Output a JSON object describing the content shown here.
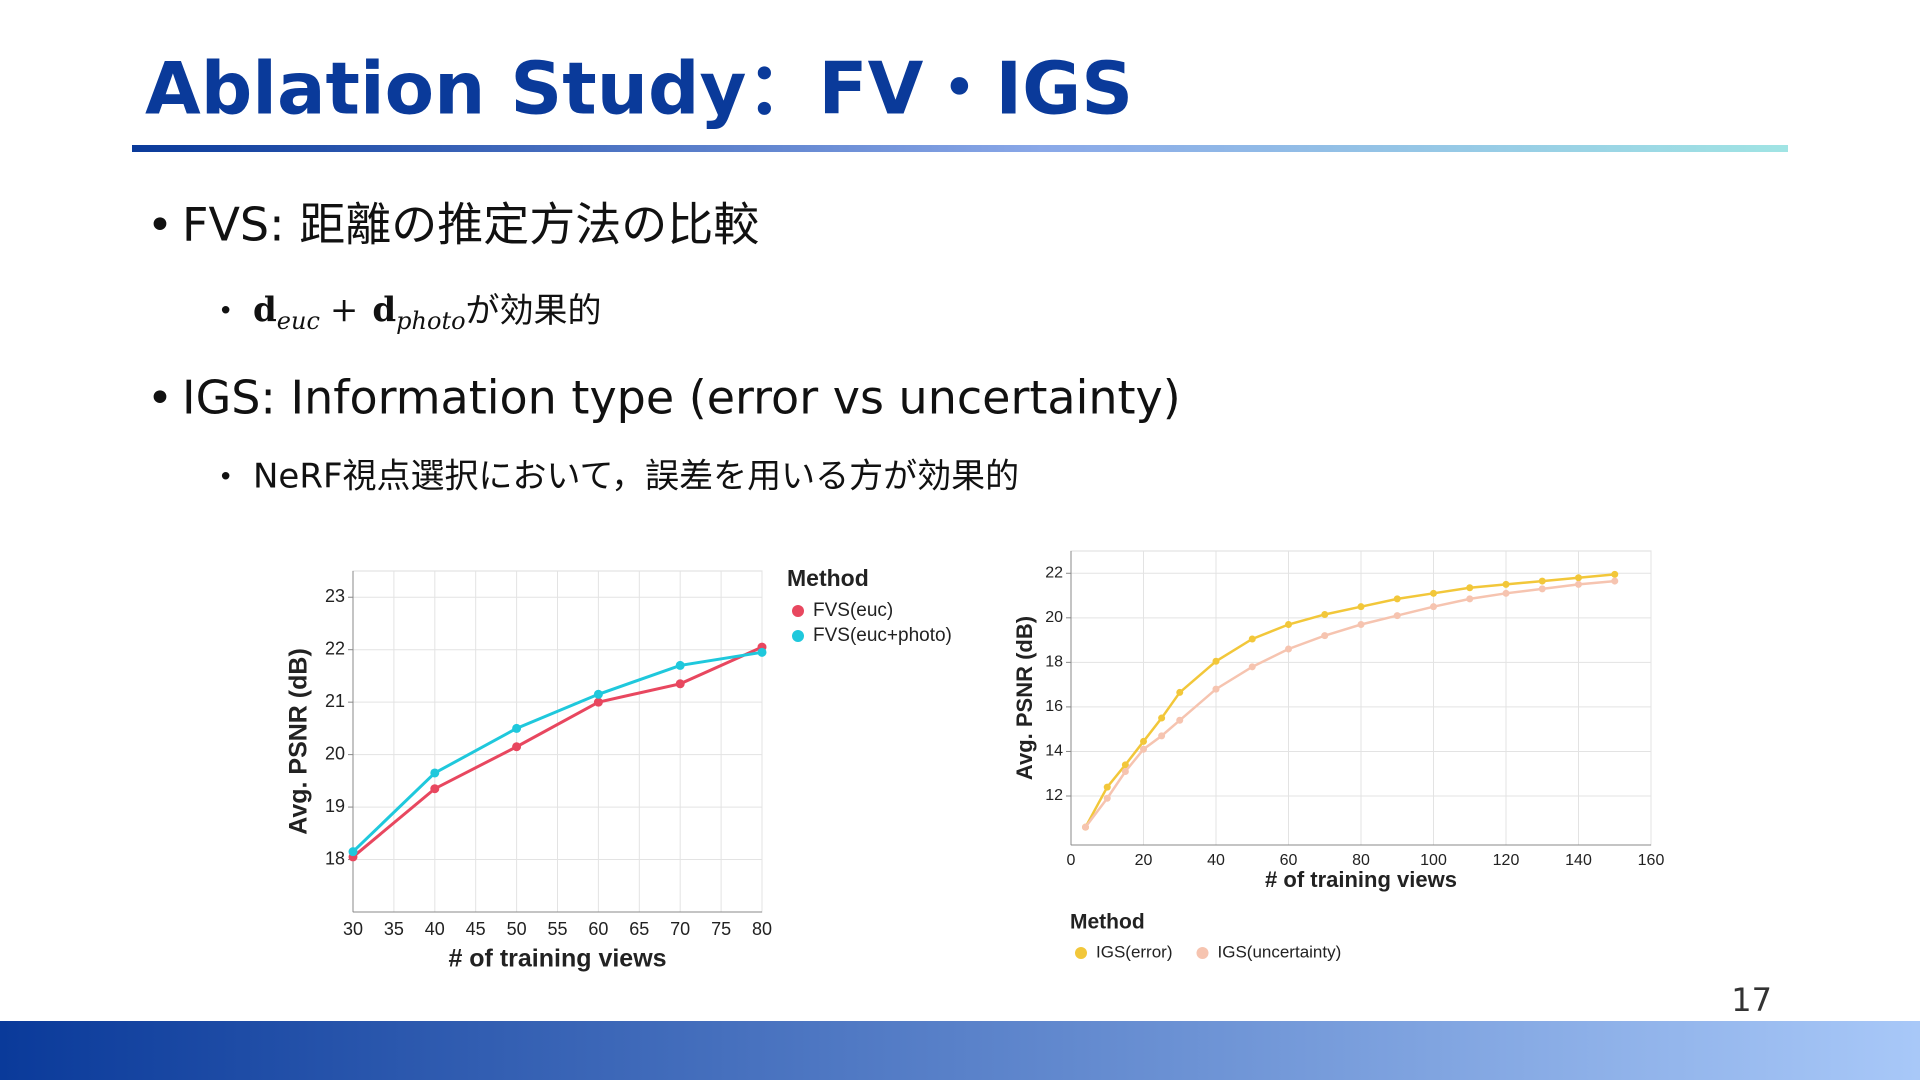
{
  "title": "Ablation Study：FV・IGS",
  "bullets": [
    {
      "text": "FVS: 距離の推定方法の比較",
      "sub": [
        "d",
        "euc",
        "+",
        "d",
        "photo",
        "が効果的"
      ]
    },
    {
      "text": "IGS: Information type (error vs uncertainty)",
      "sub": [
        "NeRF視点選択において，誤差を用いる方が効果的"
      ]
    }
  ],
  "page_number": "17",
  "chart_data": [
    {
      "type": "line",
      "xlabel": "# of training views",
      "ylabel": "Avg. PSNR (dB)",
      "x": [
        30,
        40,
        50,
        60,
        70,
        80
      ],
      "xlim": [
        30,
        80
      ],
      "xticks": [
        30,
        35,
        40,
        45,
        50,
        55,
        60,
        65,
        70,
        75,
        80
      ],
      "ylim": [
        17,
        23.5
      ],
      "yticks": [
        18,
        19,
        20,
        21,
        22,
        23
      ],
      "grid": true,
      "legend": "right",
      "legend_title": "Method",
      "series": [
        {
          "name": "FVS(euc)",
          "color": "#e8475f",
          "values": [
            18.05,
            19.35,
            20.15,
            21.0,
            21.35,
            22.05
          ]
        },
        {
          "name": "FVS(euc+photo)",
          "color": "#1fc8dc",
          "values": [
            18.15,
            19.65,
            20.5,
            21.15,
            21.7,
            21.95
          ]
        }
      ]
    },
    {
      "type": "line",
      "xlabel": "# of training views",
      "ylabel": "Avg. PSNR (dB)",
      "x": [
        4,
        10,
        15,
        20,
        25,
        30,
        40,
        50,
        60,
        70,
        80,
        90,
        100,
        110,
        120,
        130,
        140,
        150
      ],
      "xlim": [
        0,
        160
      ],
      "xticks": [
        0,
        20,
        40,
        60,
        80,
        100,
        120,
        140,
        160
      ],
      "ylim": [
        9.8,
        23
      ],
      "yticks": [
        12,
        14,
        16,
        18,
        20,
        22
      ],
      "grid": true,
      "legend": "bottom",
      "legend_title": "Method",
      "series": [
        {
          "name": "IGS(error)",
          "color": "#f2c73a",
          "values": [
            10.6,
            12.4,
            13.4,
            14.45,
            15.5,
            16.65,
            18.05,
            19.05,
            19.7,
            20.15,
            20.5,
            20.85,
            21.1,
            21.35,
            21.5,
            21.65,
            21.8,
            21.95
          ]
        },
        {
          "name": "IGS(uncertainty)",
          "color": "#f6c4b0",
          "values": [
            10.6,
            11.9,
            13.1,
            14.1,
            14.7,
            15.4,
            16.8,
            17.8,
            18.6,
            19.2,
            19.7,
            20.1,
            20.5,
            20.85,
            21.1,
            21.3,
            21.5,
            21.65
          ]
        }
      ]
    }
  ]
}
